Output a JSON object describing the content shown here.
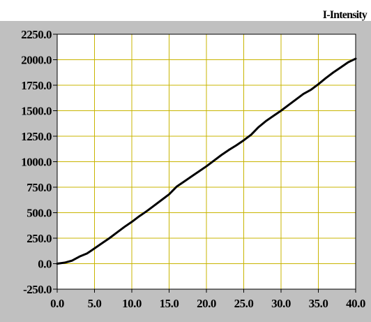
{
  "chart_data": {
    "type": "line",
    "title": "I-Intensity",
    "xlabel": "",
    "ylabel": "",
    "xlim": [
      0,
      40
    ],
    "ylim": [
      -250,
      2250
    ],
    "x_ticks": [
      "0.0",
      "5.0",
      "10.0",
      "15.0",
      "20.0",
      "25.0",
      "30.0",
      "35.0",
      "40.0"
    ],
    "y_ticks": [
      "-250.0",
      "0.0",
      "250.0",
      "500.0",
      "750.0",
      "1000.0",
      "1250.0",
      "1500.0",
      "1750.0",
      "2000.0",
      "2250.0"
    ],
    "grid": true,
    "series": [
      {
        "name": "",
        "x": [
          0,
          1,
          2,
          3,
          4,
          5,
          6,
          7,
          8,
          9,
          10,
          11,
          12,
          13,
          14,
          15,
          16,
          17,
          18,
          19,
          20,
          21,
          22,
          23,
          24,
          25,
          26,
          27,
          28,
          29,
          30,
          31,
          32,
          33,
          34,
          35,
          36,
          37,
          38,
          39,
          40
        ],
        "y": [
          0,
          10,
          30,
          70,
          100,
          150,
          200,
          250,
          305,
          360,
          410,
          465,
          515,
          570,
          625,
          680,
          755,
          805,
          855,
          905,
          955,
          1010,
          1065,
          1115,
          1160,
          1210,
          1265,
          1340,
          1400,
          1450,
          1500,
          1555,
          1610,
          1665,
          1705,
          1760,
          1820,
          1875,
          1925,
          1975,
          2010
        ]
      }
    ],
    "colors": {
      "frame": "#c0c0c0",
      "plot_background": "#ffffff",
      "grid": "#c8b400",
      "line": "#000000"
    }
  }
}
